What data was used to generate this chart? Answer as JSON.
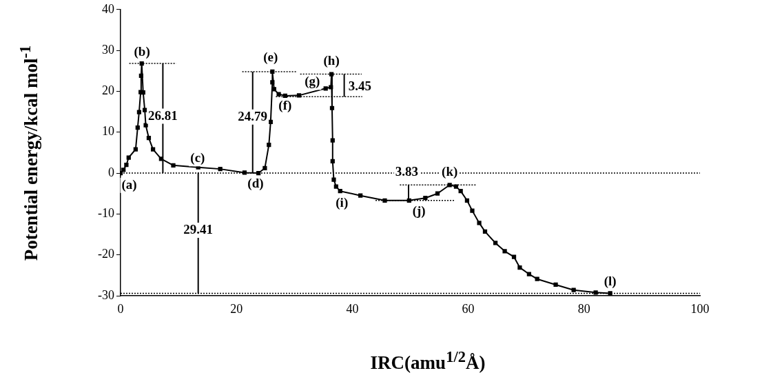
{
  "chart_data": {
    "type": "line",
    "xlabel": "IRC(amu$^{1/2}$Å)",
    "ylabel": "Potential energy/kcal mol$^{-1}$",
    "xlim": [
      0,
      100
    ],
    "xticks": [
      0,
      20,
      40,
      60,
      80,
      100
    ],
    "ylim": [
      -30,
      40
    ],
    "yticks": [
      -30,
      -20,
      -10,
      0,
      10,
      20,
      30,
      40
    ],
    "grid": false,
    "legend": false,
    "series": [
      {
        "color": "#000000",
        "marker": "square",
        "line_style": "solid",
        "x": [
          0,
          0.5,
          1,
          1.4,
          2.6,
          2.95,
          3.2,
          3.47,
          3.55,
          3.65,
          3.9,
          4.18,
          4.35,
          4.87,
          5.6,
          7,
          9.1,
          13.4,
          17.2,
          21.4,
          23.8,
          24.9,
          25.6,
          25.9,
          26.2,
          26.2,
          26.5,
          27.3,
          28.4,
          30.8,
          35.4,
          36.3,
          36.4,
          36.5,
          36.6,
          36.6,
          36.8,
          37.2,
          37.9,
          41.4,
          45.6,
          49.8,
          52.6,
          54.7,
          56.8,
          57.9,
          58.7,
          59.8,
          60.7,
          61.9,
          62.9,
          64.7,
          66.3,
          67.9,
          68.9,
          70.5,
          71.9,
          75.1,
          78.2,
          82,
          84.5
        ],
        "values": [
          0,
          0.8,
          2,
          3.8,
          5.8,
          11.1,
          14.9,
          19.8,
          23.8,
          26.8,
          19.7,
          15.4,
          11.7,
          8.6,
          5.8,
          3.5,
          1.9,
          1.4,
          1,
          0.1,
          0,
          1.2,
          6.9,
          12.5,
          22.2,
          24.8,
          20.5,
          19.3,
          18.9,
          19,
          20.7,
          21,
          24.2,
          15.9,
          8,
          2.9,
          -1.6,
          -3.3,
          -4.4,
          -5.5,
          -6.7,
          -6.7,
          -6.1,
          -5,
          -2.9,
          -3.3,
          -4.4,
          -6.7,
          -9.2,
          -12.2,
          -14.3,
          -17.1,
          -19.1,
          -20.5,
          -23.1,
          -24.7,
          -25.9,
          -27.3,
          -28.6,
          -29.2,
          -29.4
        ]
      },
      {
        "type": "line",
        "color": "#000000",
        "marker": "none",
        "line_style": "dotted",
        "x": [
          1.5,
          9.6
        ],
        "values": [
          26.8,
          26.8
        ]
      },
      {
        "type": "line",
        "color": "#000000",
        "marker": "none",
        "line_style": "dotted",
        "x": [
          21,
          30.3
        ],
        "values": [
          24.8,
          24.8
        ]
      },
      {
        "type": "line",
        "color": "#000000",
        "marker": "none",
        "line_style": "dotted",
        "x": [
          26.8,
          41.7
        ],
        "values": [
          18.7,
          18.7
        ]
      },
      {
        "type": "line",
        "color": "#000000",
        "marker": "none",
        "line_style": "dotted",
        "x": [
          31,
          41.6
        ],
        "values": [
          24.2,
          24.2
        ]
      },
      {
        "type": "line",
        "color": "#000000",
        "marker": "none",
        "line_style": "dotted",
        "x": [
          44,
          57.7
        ],
        "values": [
          -6.7,
          -6.7
        ]
      },
      {
        "type": "line",
        "color": "#000000",
        "marker": "none",
        "line_style": "dotted",
        "x": [
          48.2,
          61.4
        ],
        "values": [
          -2.9,
          -2.9
        ]
      },
      {
        "type": "line",
        "color": "#000000",
        "marker": "none",
        "line_style": "solid",
        "x": [
          7.3,
          7.3
        ],
        "values": [
          0,
          26.8
        ]
      },
      {
        "type": "line",
        "color": "#000000",
        "marker": "none",
        "line_style": "solid",
        "x": [
          22.8,
          22.8
        ],
        "values": [
          0,
          24.8
        ]
      },
      {
        "type": "line",
        "color": "#000000",
        "marker": "none",
        "line_style": "solid",
        "x": [
          38.6,
          38.6
        ],
        "values": [
          18.7,
          24.2
        ]
      },
      {
        "type": "line",
        "color": "#000000",
        "marker": "none",
        "line_style": "solid",
        "x": [
          49.7,
          49.7
        ],
        "values": [
          -6.7,
          -2.9
        ]
      },
      {
        "type": "line",
        "color": "#000000",
        "marker": "none",
        "line_style": "solid",
        "x": [
          13.4,
          13.4
        ],
        "values": [
          0,
          -29.4
        ]
      }
    ],
    "ref_lines": [
      {
        "axis": "y",
        "value": 0,
        "line_style": "dotted"
      },
      {
        "axis": "y",
        "value": -29.4,
        "line_style": "dotted"
      }
    ],
    "annotations": [
      {
        "text": "(a)",
        "x": 1.5,
        "y": -3
      },
      {
        "text": "(b)",
        "x": 3.7,
        "y": 29.5
      },
      {
        "text": "(c)",
        "x": 13.3,
        "y": 3.5
      },
      {
        "text": "(d)",
        "x": 23.3,
        "y": -2.7
      },
      {
        "text": "(e)",
        "x": 25.9,
        "y": 28.1
      },
      {
        "text": "(f)",
        "x": 28.4,
        "y": 16.3
      },
      {
        "text": "(g)",
        "x": 33.1,
        "y": 22.2
      },
      {
        "text": "(h)",
        "x": 36.4,
        "y": 27.3
      },
      {
        "text": "(i)",
        "x": 38.2,
        "y": -7.4
      },
      {
        "text": "(j)",
        "x": 51.5,
        "y": -9.4
      },
      {
        "text": "(k)",
        "x": 56.8,
        "y": 0.2
      },
      {
        "text": "(l)",
        "x": 84.5,
        "y": -26.6
      },
      {
        "text": "26.81",
        "x": 7.3,
        "y": 13.9
      },
      {
        "text": "24.79",
        "x": 22.8,
        "y": 13.7
      },
      {
        "text": "3.45",
        "x": 41.3,
        "y": 21
      },
      {
        "text": "3.83",
        "x": 49.4,
        "y": 0.1
      },
      {
        "text": "29.41",
        "x": 13.4,
        "y": -14
      }
    ]
  }
}
